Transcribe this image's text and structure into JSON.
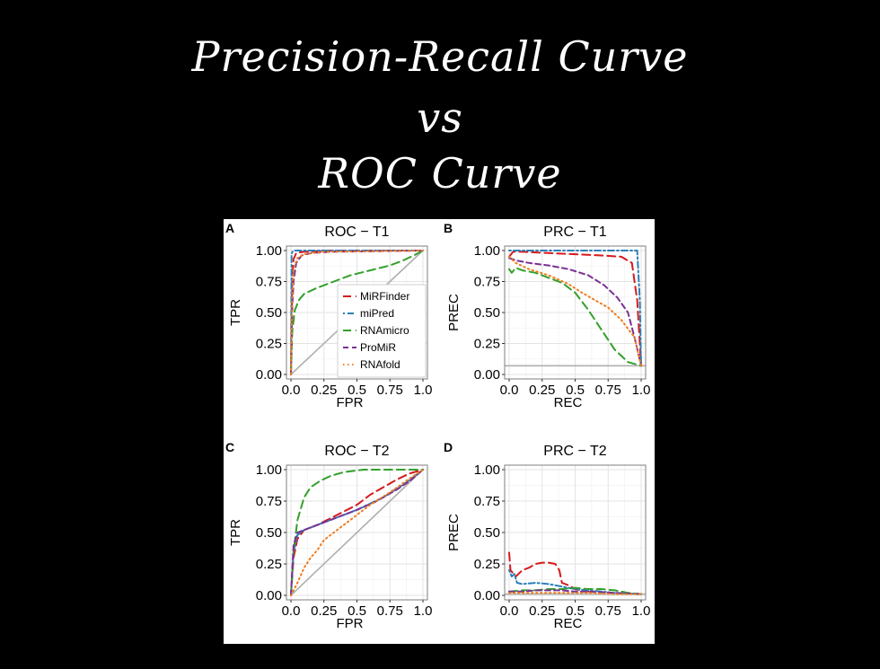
{
  "slide": {
    "title_line1": "Precision-Recall Curve",
    "title_line2": "vs",
    "title_line3": "ROC Curve"
  },
  "colors": {
    "MiRFinder": "#d7191c",
    "miPred": "#2c7fb8",
    "RNAmicro": "#33a02c",
    "ProMiR": "#7b3294",
    "RNAfold": "#f07c1c",
    "baseline": "#b0b0b0"
  },
  "chart_data": [
    {
      "panel": "A",
      "type": "line",
      "title": "ROC − T1",
      "xlabel": "FPR",
      "ylabel": "TPR",
      "xlim": [
        0,
        1
      ],
      "ylim": [
        0,
        1
      ],
      "xticks": [
        "0.0",
        "0.25",
        "0.5",
        "0.75",
        "1.0"
      ],
      "yticks": [
        "0.00",
        "0.25",
        "0.50",
        "0.75",
        "1.00"
      ],
      "grid": true,
      "legend": "inside center-right",
      "baseline": "diagonal",
      "series": [
        {
          "name": "MiRFinder",
          "dash": "longdash",
          "x": [
            0,
            0.01,
            0.02,
            0.04,
            0.1,
            0.3,
            1.0
          ],
          "y": [
            0,
            0.78,
            0.93,
            0.98,
            0.99,
            1.0,
            1.0
          ]
        },
        {
          "name": "miPred",
          "dash": "dotdash",
          "x": [
            0,
            0.005,
            0.01,
            0.03,
            0.1,
            1.0
          ],
          "y": [
            0,
            0.96,
            0.99,
            1.0,
            1.0,
            1.0
          ]
        },
        {
          "name": "RNAmicro",
          "dash": "longdash",
          "x": [
            0,
            0.01,
            0.03,
            0.06,
            0.1,
            0.2,
            0.3,
            0.45,
            0.6,
            0.75,
            0.85,
            0.93,
            1.0
          ],
          "y": [
            0,
            0.35,
            0.52,
            0.6,
            0.65,
            0.7,
            0.74,
            0.8,
            0.84,
            0.88,
            0.92,
            0.96,
            1.0
          ]
        },
        {
          "name": "ProMiR",
          "dash": "dash",
          "x": [
            0,
            0.01,
            0.02,
            0.04,
            0.08,
            0.15,
            0.3,
            1.0
          ],
          "y": [
            0,
            0.55,
            0.75,
            0.9,
            0.96,
            0.98,
            0.99,
            1.0
          ]
        },
        {
          "name": "RNAfold",
          "dash": "dot",
          "x": [
            0,
            0.01,
            0.02,
            0.05,
            0.1,
            0.25,
            1.0
          ],
          "y": [
            0,
            0.65,
            0.85,
            0.94,
            0.97,
            0.99,
            1.0
          ]
        }
      ]
    },
    {
      "panel": "B",
      "type": "line",
      "title": "PRC − T1",
      "xlabel": "REC",
      "ylabel": "PREC",
      "xlim": [
        0,
        1
      ],
      "ylim": [
        0,
        1
      ],
      "xticks": [
        "0.0",
        "0.25",
        "0.5",
        "0.75",
        "1.0"
      ],
      "yticks": [
        "0.00",
        "0.25",
        "0.50",
        "0.75",
        "1.00"
      ],
      "grid": true,
      "baseline": "horizontal 0.07",
      "series": [
        {
          "name": "MiRFinder",
          "dash": "longdash",
          "x": [
            0.0,
            0.03,
            0.1,
            0.3,
            0.5,
            0.7,
            0.85,
            0.93,
            0.97,
            1.0
          ],
          "y": [
            0.95,
            0.99,
            0.99,
            0.98,
            0.97,
            0.96,
            0.95,
            0.9,
            0.6,
            0.07
          ]
        },
        {
          "name": "miPred",
          "dash": "dotdash",
          "x": [
            0.0,
            0.05,
            0.5,
            0.9,
            0.97,
            0.99,
            1.0
          ],
          "y": [
            1.0,
            1.0,
            1.0,
            1.0,
            1.0,
            0.6,
            0.07
          ]
        },
        {
          "name": "RNAmicro",
          "dash": "longdash",
          "x": [
            0.0,
            0.02,
            0.05,
            0.1,
            0.2,
            0.3,
            0.4,
            0.5,
            0.6,
            0.7,
            0.8,
            0.9,
            1.0
          ],
          "y": [
            0.85,
            0.82,
            0.86,
            0.84,
            0.82,
            0.78,
            0.74,
            0.66,
            0.52,
            0.36,
            0.2,
            0.1,
            0.07
          ]
        },
        {
          "name": "ProMiR",
          "dash": "dash",
          "x": [
            0.0,
            0.05,
            0.15,
            0.3,
            0.45,
            0.6,
            0.72,
            0.82,
            0.9,
            0.95,
            1.0
          ],
          "y": [
            0.94,
            0.92,
            0.9,
            0.88,
            0.85,
            0.8,
            0.72,
            0.62,
            0.5,
            0.3,
            0.07
          ]
        },
        {
          "name": "RNAfold",
          "dash": "dot",
          "x": [
            0.0,
            0.05,
            0.15,
            0.3,
            0.45,
            0.55,
            0.65,
            0.75,
            0.85,
            0.95,
            1.0
          ],
          "y": [
            0.95,
            0.9,
            0.85,
            0.8,
            0.73,
            0.66,
            0.6,
            0.54,
            0.44,
            0.3,
            0.07
          ]
        }
      ]
    },
    {
      "panel": "C",
      "type": "line",
      "title": "ROC − T2",
      "xlabel": "FPR",
      "ylabel": "TPR",
      "xlim": [
        0,
        1
      ],
      "ylim": [
        0,
        1
      ],
      "xticks": [
        "0.0",
        "0.25",
        "0.5",
        "0.75",
        "1.0"
      ],
      "yticks": [
        "0.00",
        "0.25",
        "0.50",
        "0.75",
        "1.00"
      ],
      "grid": true,
      "baseline": "diagonal",
      "series": [
        {
          "name": "MiRFinder",
          "dash": "longdash",
          "x": [
            0,
            0.02,
            0.05,
            0.1,
            0.2,
            0.35,
            0.5,
            0.6,
            0.7,
            0.8,
            0.9,
            1.0
          ],
          "y": [
            0,
            0.3,
            0.45,
            0.52,
            0.56,
            0.64,
            0.72,
            0.8,
            0.86,
            0.92,
            0.97,
            1.0
          ]
        },
        {
          "name": "miPred",
          "dash": "dotdash",
          "x": [
            0,
            0.02,
            0.05,
            0.1,
            0.2,
            0.35,
            0.5,
            0.7,
            0.85,
            1.0
          ],
          "y": [
            0,
            0.35,
            0.48,
            0.52,
            0.56,
            0.62,
            0.68,
            0.78,
            0.88,
            1.0
          ]
        },
        {
          "name": "RNAmicro",
          "dash": "longdash",
          "x": [
            0,
            0.02,
            0.05,
            0.1,
            0.15,
            0.22,
            0.3,
            0.4,
            0.55,
            0.7,
            1.0
          ],
          "y": [
            0,
            0.35,
            0.6,
            0.78,
            0.86,
            0.91,
            0.95,
            0.98,
            1.0,
            1.0,
            1.0
          ]
        },
        {
          "name": "ProMiR",
          "dash": "dash",
          "x": [
            0,
            0.02,
            0.05,
            0.1,
            0.2,
            0.35,
            0.5,
            0.65,
            0.8,
            0.9,
            1.0
          ],
          "y": [
            0,
            0.4,
            0.5,
            0.52,
            0.56,
            0.62,
            0.68,
            0.75,
            0.84,
            0.91,
            1.0
          ]
        },
        {
          "name": "RNAfold",
          "dash": "dot",
          "x": [
            0,
            0.05,
            0.1,
            0.15,
            0.2,
            0.25,
            0.3,
            0.4,
            0.5,
            0.6,
            0.75,
            0.9,
            1.0
          ],
          "y": [
            0,
            0.1,
            0.22,
            0.3,
            0.36,
            0.44,
            0.48,
            0.56,
            0.64,
            0.72,
            0.82,
            0.93,
            1.0
          ]
        }
      ]
    },
    {
      "panel": "D",
      "type": "line",
      "title": "PRC − T2",
      "xlabel": "REC",
      "ylabel": "PREC",
      "xlim": [
        0,
        1
      ],
      "ylim": [
        0,
        1
      ],
      "xticks": [
        "0.0",
        "0.25",
        "0.5",
        "0.75",
        "1.0"
      ],
      "yticks": [
        "0.00",
        "0.25",
        "0.50",
        "0.75",
        "1.00"
      ],
      "grid": true,
      "baseline": "horizontal 0.01",
      "series": [
        {
          "name": "MiRFinder",
          "dash": "longdash",
          "x": [
            0.0,
            0.01,
            0.05,
            0.1,
            0.15,
            0.2,
            0.25,
            0.3,
            0.35,
            0.38,
            0.4,
            0.45,
            0.5,
            0.55,
            0.6
          ],
          "y": [
            0.34,
            0.2,
            0.15,
            0.2,
            0.22,
            0.25,
            0.26,
            0.26,
            0.25,
            0.2,
            0.1,
            0.08,
            0.05,
            0.04,
            0.03
          ]
        },
        {
          "name": "miPred",
          "dash": "dotdash",
          "x": [
            0.0,
            0.02,
            0.04,
            0.06,
            0.1,
            0.2,
            0.3,
            0.4,
            0.5,
            0.6,
            0.8,
            1.0
          ],
          "y": [
            0.2,
            0.15,
            0.17,
            0.1,
            0.09,
            0.1,
            0.09,
            0.07,
            0.05,
            0.04,
            0.02,
            0.01
          ]
        },
        {
          "name": "RNAmicro",
          "dash": "longdash",
          "x": [
            0.0,
            0.1,
            0.2,
            0.3,
            0.4,
            0.5,
            0.6,
            0.7,
            0.8,
            0.9,
            1.0
          ],
          "y": [
            0.03,
            0.04,
            0.04,
            0.05,
            0.05,
            0.06,
            0.05,
            0.05,
            0.04,
            0.02,
            0.01
          ]
        },
        {
          "name": "ProMiR",
          "dash": "dash",
          "x": [
            0.0,
            0.1,
            0.2,
            0.3,
            0.4,
            0.5,
            0.6,
            0.8,
            1.0
          ],
          "y": [
            0.03,
            0.03,
            0.04,
            0.04,
            0.04,
            0.03,
            0.03,
            0.02,
            0.01
          ]
        },
        {
          "name": "RNAfold",
          "dash": "dot",
          "x": [
            0.0,
            0.2,
            0.4,
            0.6,
            0.8,
            1.0
          ],
          "y": [
            0.02,
            0.02,
            0.02,
            0.02,
            0.01,
            0.01
          ]
        }
      ]
    }
  ]
}
